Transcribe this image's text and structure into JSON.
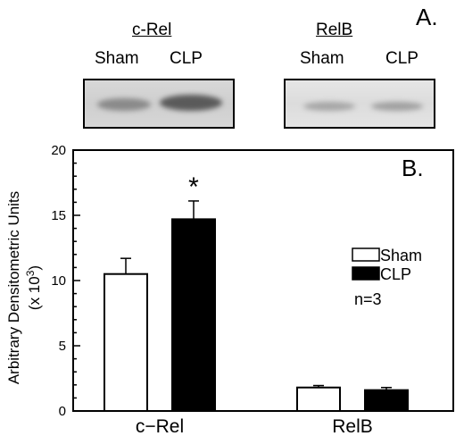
{
  "blots": {
    "panel_letter": "A.",
    "crel": {
      "title": "c-Rel",
      "lane1": "Sham",
      "lane2": "CLP"
    },
    "relb": {
      "title": "RelB",
      "lane1": "Sham",
      "lane2": "CLP"
    }
  },
  "chart_data": {
    "type": "bar",
    "panel_letter": "B.",
    "categories": [
      "c−Rel",
      "RelB"
    ],
    "series": [
      {
        "name": "Sham",
        "values": [
          10.5,
          1.8
        ],
        "errors": [
          1.2,
          0.15
        ],
        "color": "#ffffff"
      },
      {
        "name": "CLP",
        "values": [
          14.7,
          1.6
        ],
        "errors": [
          1.4,
          0.2
        ],
        "color": "#000000"
      }
    ],
    "ylabel_line1": "Arbitrary Densitometric Units",
    "ylabel_line2": "(x 10",
    "ylabel_sup": "3",
    "ylabel_close": ")",
    "ylim": [
      0,
      20
    ],
    "yticks": [
      "0",
      "5",
      "10",
      "15",
      "20"
    ],
    "annotations": [
      {
        "text": "*",
        "category": "c−Rel",
        "series": "CLP"
      }
    ],
    "legend_note": "n=3",
    "legend_position": "right",
    "grid": false
  }
}
